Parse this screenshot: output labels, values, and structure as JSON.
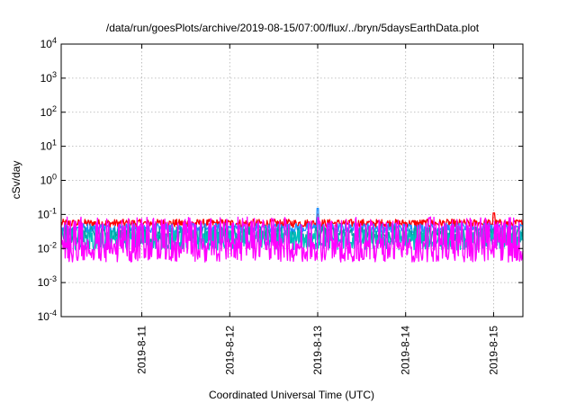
{
  "chart_data": {
    "type": "line",
    "title": "/data/run/goesPlots/archive/2019-08-15/07:00/flux/../bryn/5daysEarthData.plot",
    "xlabel": "Coordinated Universal Time (UTC)",
    "ylabel": "cSv/day",
    "yscale": "log",
    "ylim": [
      0.0001,
      10000
    ],
    "xlim": [
      "2019-08-10 02:00",
      "2019-08-15 08:00"
    ],
    "grid": true,
    "y_ticks": [
      {
        "value": 0.0001,
        "base": "10",
        "exp": "-4"
      },
      {
        "value": 0.001,
        "base": "10",
        "exp": "-3"
      },
      {
        "value": 0.01,
        "base": "10",
        "exp": "-2"
      },
      {
        "value": 0.1,
        "base": "10",
        "exp": "-1"
      },
      {
        "value": 1,
        "base": "10",
        "exp": "0"
      },
      {
        "value": 10,
        "base": "10",
        "exp": "1"
      },
      {
        "value": 100,
        "base": "10",
        "exp": "2"
      },
      {
        "value": 1000,
        "base": "10",
        "exp": "3"
      },
      {
        "value": 10000,
        "base": "10",
        "exp": "4"
      }
    ],
    "x_ticks": [
      {
        "value": "2019-08-11 00:00",
        "label": "2019-8-11"
      },
      {
        "value": "2019-08-12 00:00",
        "label": "2019-8-12"
      },
      {
        "value": "2019-08-13 00:00",
        "label": "2019-8-13"
      },
      {
        "value": "2019-08-14 00:00",
        "label": "2019-8-14"
      },
      {
        "value": "2019-08-15 00:00",
        "label": "2019-8-15"
      }
    ],
    "series": [
      {
        "color": "#ff0000",
        "base": 0.055,
        "spread": 0.12,
        "spikes": [
          [
            "2019-08-13 00:00",
            0.1
          ],
          [
            "2019-08-15 00:00",
            0.11
          ]
        ]
      },
      {
        "color": "#1e90ff",
        "base": 0.04,
        "spread": 0.14,
        "spikes": [
          [
            "2019-08-13 00:00",
            0.15
          ]
        ]
      },
      {
        "color": "#00a0a0",
        "base": 0.025,
        "spread": 0.25,
        "spikes": []
      },
      {
        "color": "#00bfbf",
        "base": 0.018,
        "spread": 0.3,
        "spikes": []
      },
      {
        "color": "#ff00ff",
        "base": 0.009,
        "spread": 0.35,
        "bursts_to": 0.06,
        "spikes": []
      }
    ]
  }
}
